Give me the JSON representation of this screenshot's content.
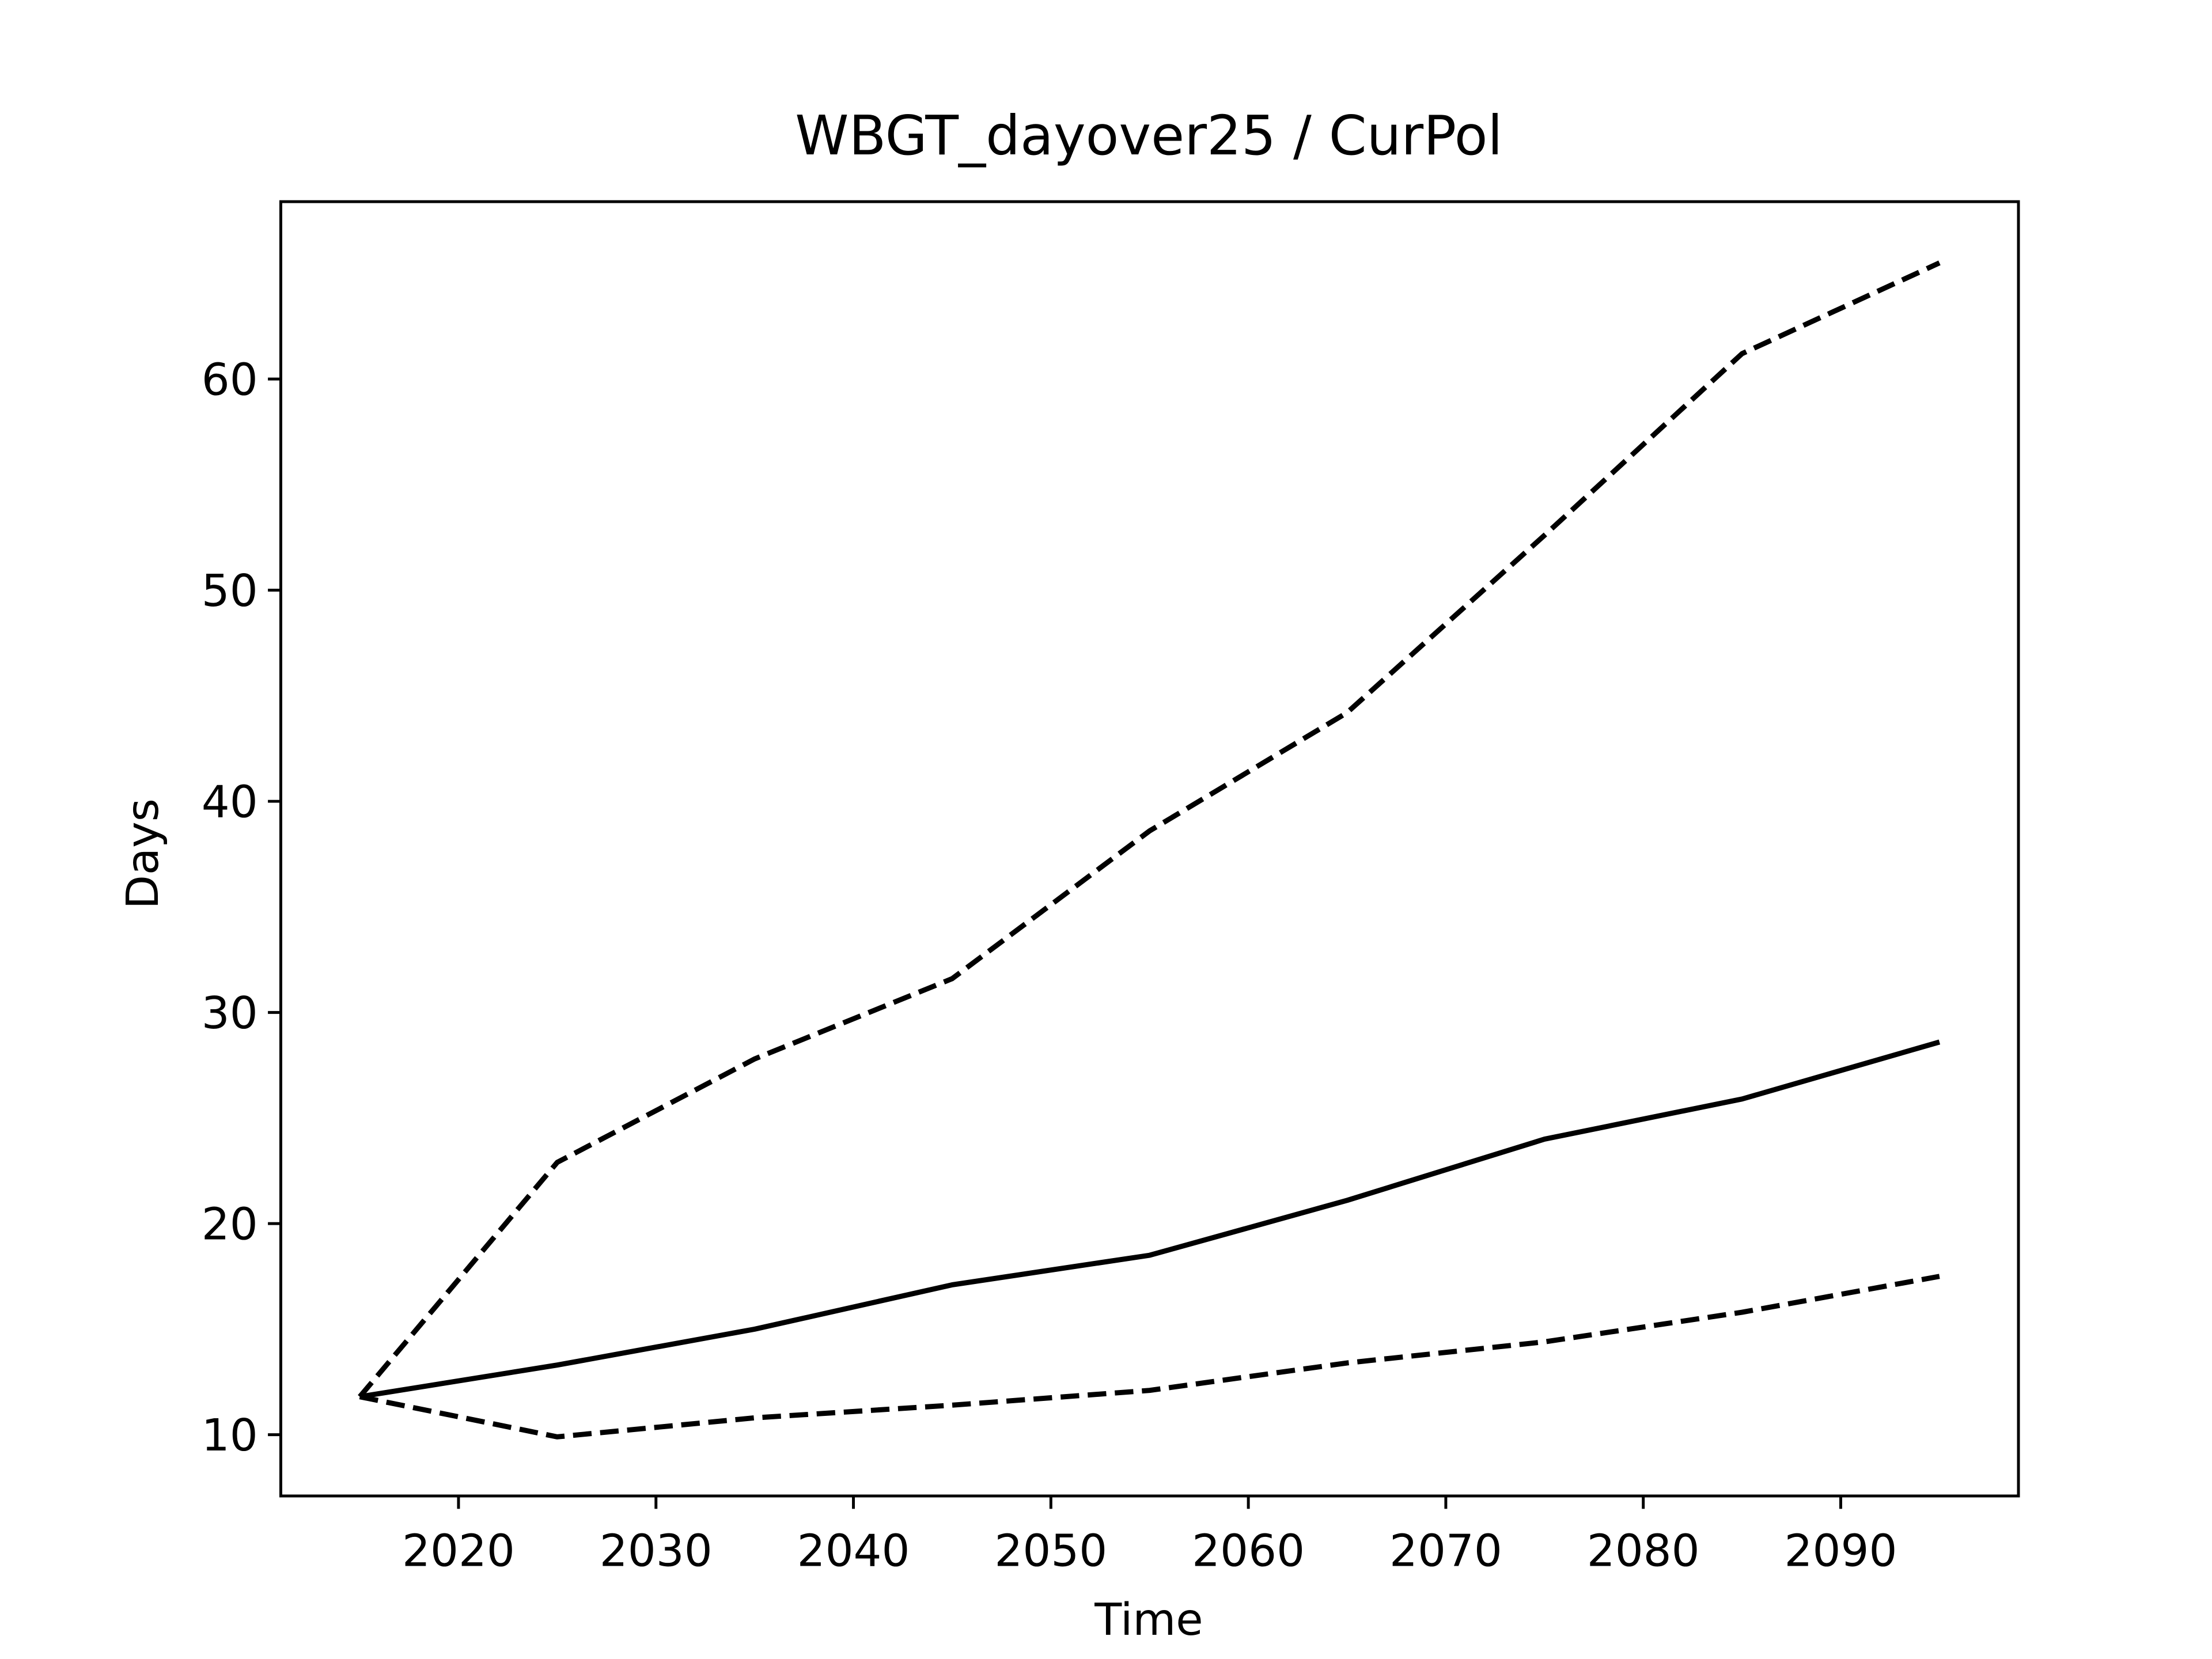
{
  "chart_data": {
    "type": "line",
    "title": "WBGT_dayover25 / CurPol",
    "x_label": "Time",
    "y_label": "Days",
    "x": [
      2015,
      2025,
      2035,
      2045,
      2055,
      2065,
      2075,
      2085,
      2095
    ],
    "series": [
      {
        "color": "#000000",
        "style": "solid",
        "values": [
          11.8,
          13.3,
          15.0,
          17.1,
          18.5,
          21.1,
          24.0,
          25.9,
          28.6
        ]
      },
      {
        "color": "#000000",
        "style": "dashed",
        "values": [
          11.8,
          22.9,
          27.8,
          31.6,
          38.6,
          44.2,
          52.6,
          61.2,
          65.5
        ]
      },
      {
        "color": "#000000",
        "style": "dashed",
        "values": [
          11.8,
          9.9,
          10.8,
          11.4,
          12.1,
          13.4,
          14.4,
          15.8,
          17.5
        ]
      }
    ],
    "xlim": [
      2011,
      2099
    ],
    "xticks": [
      2020,
      2030,
      2040,
      2050,
      2060,
      2070,
      2080,
      2090
    ],
    "ylim": [
      7.1,
      68.4
    ],
    "yticks": [
      10,
      20,
      30,
      40,
      50,
      60
    ],
    "grid": false
  }
}
